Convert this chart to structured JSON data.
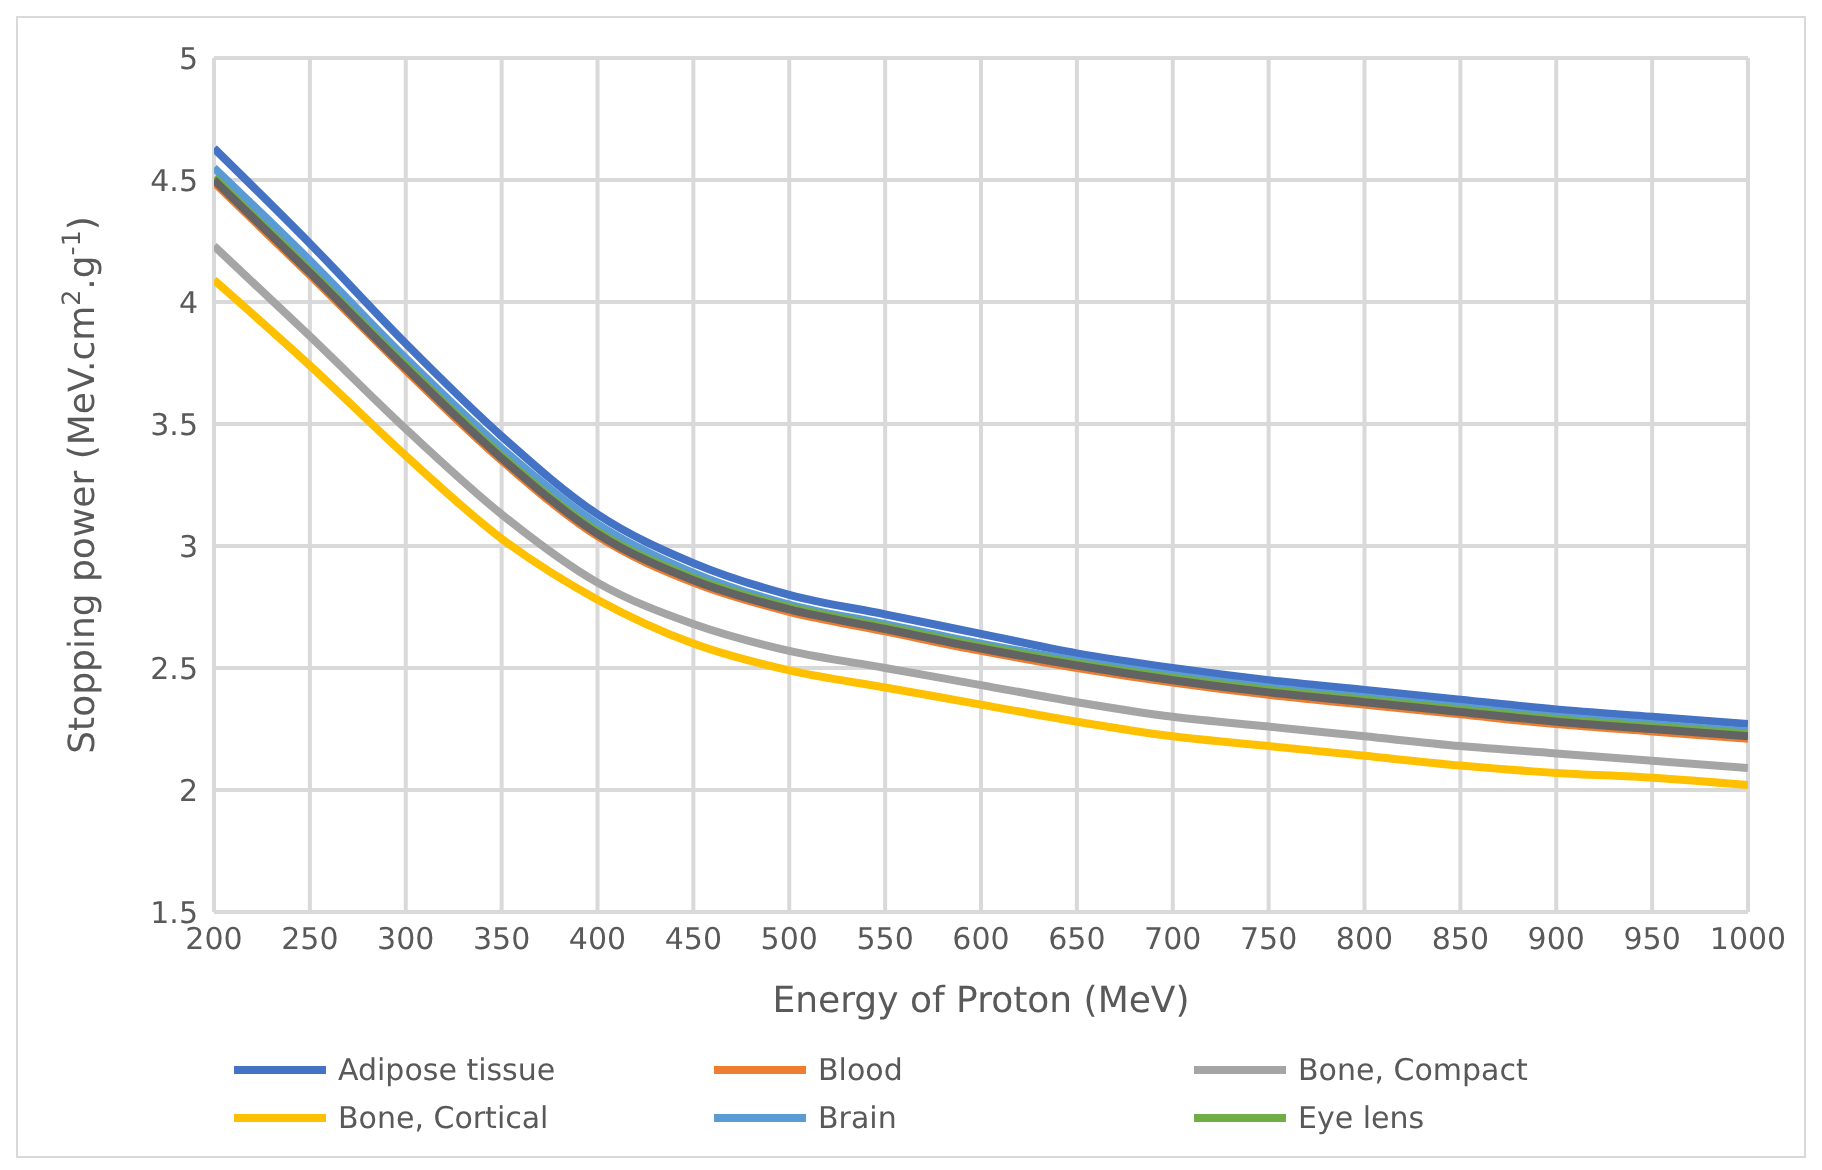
{
  "chart_data": {
    "type": "line",
    "xlabel": "Energy of Proton (MeV)",
    "ylabel": "Stopping power (MeV.cm$^{2}$.g$^{-1}$)",
    "x": [
      200,
      250,
      300,
      350,
      400,
      450,
      500,
      550,
      600,
      650,
      700,
      750,
      800,
      850,
      900,
      950,
      1000
    ],
    "xlim": [
      200,
      1000
    ],
    "xticks": [
      200,
      250,
      300,
      350,
      400,
      450,
      500,
      550,
      600,
      650,
      700,
      750,
      800,
      850,
      900,
      950,
      1000
    ],
    "ylim": [
      1.5,
      5
    ],
    "yticks": [
      1.5,
      2,
      2.5,
      3,
      3.5,
      4,
      4.5,
      5
    ],
    "grid": true,
    "legend": "bottom",
    "marker": "none",
    "line_style": "solid",
    "series": [
      {
        "name": "Adipose tissue",
        "color": "#4472c4",
        "values": [
          4.63,
          4.24,
          3.83,
          3.45,
          3.13,
          2.93,
          2.8,
          2.72,
          2.64,
          2.56,
          2.5,
          2.45,
          2.41,
          2.37,
          2.33,
          2.3,
          2.27
        ]
      },
      {
        "name": "Blood",
        "color": "#ed7d31",
        "values": [
          4.49,
          4.11,
          3.72,
          3.35,
          3.04,
          2.85,
          2.73,
          2.65,
          2.57,
          2.5,
          2.44,
          2.39,
          2.35,
          2.31,
          2.27,
          2.24,
          2.21
        ]
      },
      {
        "name": "Bone, Compact",
        "color": "#a5a5a5",
        "values": [
          4.23,
          3.86,
          3.48,
          3.13,
          2.85,
          2.68,
          2.57,
          2.5,
          2.43,
          2.36,
          2.3,
          2.26,
          2.22,
          2.18,
          2.15,
          2.12,
          2.09
        ]
      },
      {
        "name": "Bone, Cortical",
        "color": "#ffc000",
        "values": [
          4.09,
          3.74,
          3.37,
          3.03,
          2.78,
          2.6,
          2.49,
          2.42,
          2.35,
          2.28,
          2.22,
          2.18,
          2.14,
          2.1,
          2.07,
          2.05,
          2.02
        ]
      },
      {
        "name": "Brain",
        "color": "#5b9bd5",
        "values": [
          4.55,
          4.17,
          3.77,
          3.4,
          3.09,
          2.89,
          2.76,
          2.68,
          2.6,
          2.53,
          2.47,
          2.42,
          2.38,
          2.34,
          2.3,
          2.27,
          2.24
        ]
      },
      {
        "name": "Eye lens",
        "color": "#70ad47",
        "values": [
          4.51,
          4.13,
          3.74,
          3.37,
          3.06,
          2.87,
          2.75,
          2.67,
          2.59,
          2.52,
          2.46,
          2.41,
          2.37,
          2.33,
          2.29,
          2.26,
          2.23
        ]
      },
      {
        "color": "#636363",
        "values": [
          4.5,
          4.12,
          3.73,
          3.36,
          3.05,
          2.86,
          2.74,
          2.66,
          2.58,
          2.51,
          2.45,
          2.4,
          2.36,
          2.32,
          2.28,
          2.25,
          2.22
        ]
      }
    ]
  }
}
